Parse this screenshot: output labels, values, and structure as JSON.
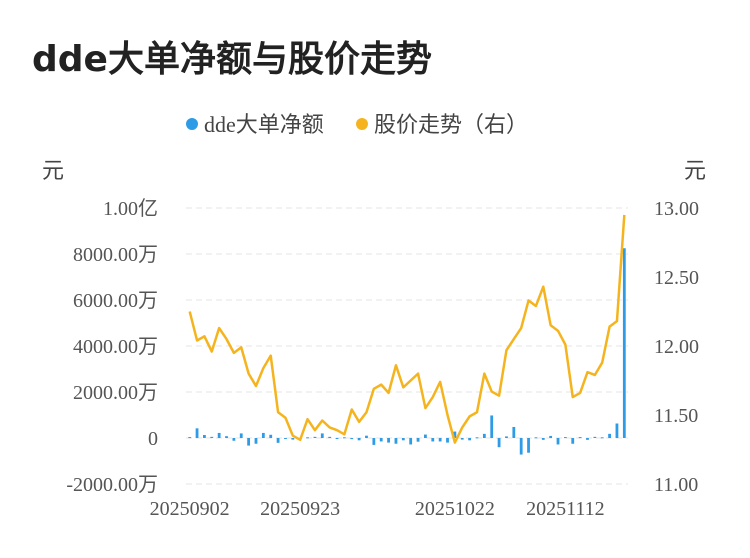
{
  "title": "dde大单净额与股价走势",
  "chart_data": {
    "type": "bar+line",
    "legend": [
      {
        "name": "dde大单净额",
        "color": "#2e9be6"
      },
      {
        "name": "股价走势（右）",
        "color": "#f5b41e"
      }
    ],
    "left_axis": {
      "unit": "元",
      "min": -20000000,
      "max": 100000000,
      "ticks": [
        {
          "value": 100000000,
          "label": "1.00亿"
        },
        {
          "value": 80000000,
          "label": "8000.00万"
        },
        {
          "value": 60000000,
          "label": "6000.00万"
        },
        {
          "value": 40000000,
          "label": "4000.00万"
        },
        {
          "value": 20000000,
          "label": "2000.00万"
        },
        {
          "value": 0,
          "label": "0"
        },
        {
          "value": -20000000,
          "label": "-2000.00万"
        }
      ]
    },
    "right_axis": {
      "unit": "元",
      "min": 11.0,
      "max": 13.0,
      "ticks": [
        {
          "value": 13.0,
          "label": "13.00"
        },
        {
          "value": 12.5,
          "label": "12.50"
        },
        {
          "value": 12.0,
          "label": "12.00"
        },
        {
          "value": 11.5,
          "label": "11.50"
        },
        {
          "value": 11.0,
          "label": "11.00"
        }
      ]
    },
    "x_tick_labels": [
      {
        "index": 0,
        "label": "20250902"
      },
      {
        "index": 15,
        "label": "20250923"
      },
      {
        "index": 36,
        "label": "20251022"
      },
      {
        "index": 51,
        "label": "20251112"
      }
    ],
    "grid": true,
    "series": [
      {
        "name": "dde大单净额",
        "kind": "bar",
        "values": [
          400000,
          4200000,
          1300000,
          500000,
          2200000,
          800000,
          -1200000,
          2000000,
          -3300000,
          -2500000,
          2200000,
          1400000,
          -2100000,
          -300000,
          -700000,
          -600000,
          300000,
          500000,
          2000000,
          500000,
          -400000,
          300000,
          -500000,
          -1000000,
          1000000,
          -3000000,
          -1500000,
          -2000000,
          -2500000,
          -1000000,
          -2800000,
          -1600000,
          1500000,
          -1500000,
          -1500000,
          -2000000,
          2800000,
          -700000,
          -1000000,
          300000,
          1800000,
          9800000,
          -4000000,
          700000,
          4800000,
          -7200000,
          -6400000,
          300000,
          -800000,
          900000,
          -2800000,
          400000,
          -2500000,
          400000,
          -800000,
          500000,
          300000,
          1800000,
          6300000,
          82500000
        ]
      },
      {
        "name": "股价走势（右）",
        "kind": "line",
        "values": [
          12.25,
          12.04,
          12.07,
          11.96,
          12.13,
          12.05,
          11.95,
          11.99,
          11.8,
          11.71,
          11.84,
          11.93,
          11.52,
          11.48,
          11.35,
          11.32,
          11.47,
          11.39,
          11.46,
          11.41,
          11.39,
          11.36,
          11.54,
          11.45,
          11.52,
          11.69,
          11.72,
          11.66,
          11.86,
          11.7,
          11.75,
          11.8,
          11.55,
          11.63,
          11.74,
          11.5,
          11.3,
          11.41,
          11.49,
          11.52,
          11.8,
          11.67,
          11.64,
          11.97,
          12.05,
          12.13,
          12.33,
          12.29,
          12.43,
          12.15,
          12.11,
          12.01,
          11.63,
          11.66,
          11.81,
          11.79,
          11.88,
          12.14,
          12.18,
          12.95
        ]
      }
    ]
  }
}
